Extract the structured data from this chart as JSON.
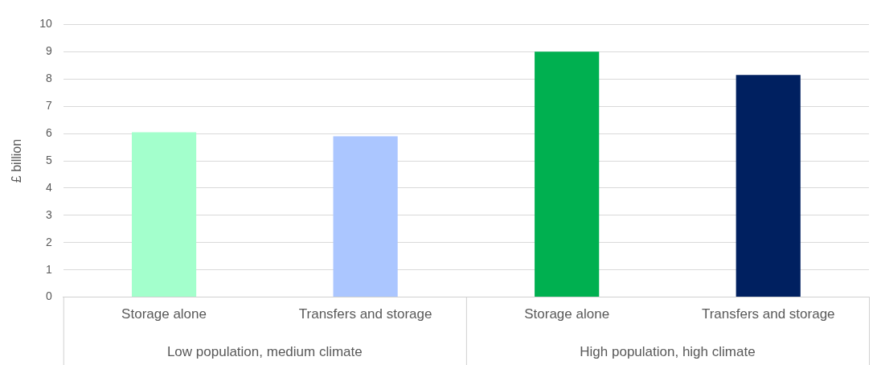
{
  "chart_data": {
    "type": "bar",
    "ylabel": "£ billion",
    "categories": [
      "Storage alone",
      "Transfers and storage",
      "Storage alone",
      "Transfers and storage"
    ],
    "values": [
      6.05,
      5.9,
      9.0,
      8.15
    ],
    "colors": [
      "#a3ffcc",
      "#abc6ff",
      "#00b050",
      "#002060"
    ],
    "ylim": [
      0,
      10
    ],
    "yticks": [
      0,
      1,
      2,
      3,
      4,
      5,
      6,
      7,
      8,
      9,
      10
    ],
    "grid": "y",
    "legend": false,
    "annotations": [
      "Low population, medium climate",
      "High population, high climate"
    ]
  }
}
